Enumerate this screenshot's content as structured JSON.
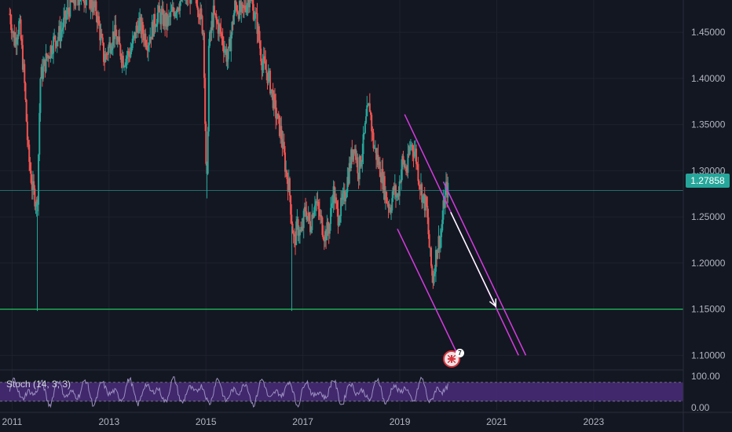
{
  "chart_data": {
    "type": "candlestick",
    "symbol_current_price": "1.27858",
    "price_axis": {
      "ticks": [
        "1.45000",
        "1.40000",
        "1.35000",
        "1.30000",
        "1.25000",
        "1.20000",
        "1.15000",
        "1.10000"
      ],
      "range": [
        1.085,
        1.485
      ]
    },
    "time_axis": {
      "ticks": [
        "2011",
        "2013",
        "2015",
        "2017",
        "2019",
        "2021",
        "2023"
      ],
      "range": [
        2010.75,
        2024.85
      ]
    },
    "price_path": [
      [
        2010.95,
        1.47
      ],
      [
        2011.05,
        1.44
      ],
      [
        2011.15,
        1.46
      ],
      [
        2011.25,
        1.4
      ],
      [
        2011.33,
        1.32
      ],
      [
        2011.42,
        1.28
      ],
      [
        2011.48,
        1.27
      ],
      [
        2011.52,
        1.26
      ],
      [
        2011.58,
        1.4
      ],
      [
        2011.7,
        1.42
      ],
      [
        2011.85,
        1.44
      ],
      [
        2012.0,
        1.45
      ],
      [
        2012.2,
        1.48
      ],
      [
        2012.4,
        1.49
      ],
      [
        2012.55,
        1.49
      ],
      [
        2012.75,
        1.47
      ],
      [
        2012.9,
        1.42
      ],
      [
        2013.1,
        1.45
      ],
      [
        2013.3,
        1.42
      ],
      [
        2013.45,
        1.43
      ],
      [
        2013.6,
        1.46
      ],
      [
        2013.8,
        1.44
      ],
      [
        2014.0,
        1.47
      ],
      [
        2014.2,
        1.46
      ],
      [
        2014.4,
        1.48
      ],
      [
        2014.6,
        1.49
      ],
      [
        2014.8,
        1.49
      ],
      [
        2014.95,
        1.45
      ],
      [
        2015.0,
        1.3
      ],
      [
        2015.03,
        1.28
      ],
      [
        2015.05,
        1.43
      ],
      [
        2015.15,
        1.47
      ],
      [
        2015.3,
        1.45
      ],
      [
        2015.45,
        1.42
      ],
      [
        2015.6,
        1.48
      ],
      [
        2015.75,
        1.47
      ],
      [
        2015.9,
        1.49
      ],
      [
        2016.05,
        1.46
      ],
      [
        2016.15,
        1.42
      ],
      [
        2016.3,
        1.4
      ],
      [
        2016.45,
        1.36
      ],
      [
        2016.55,
        1.34
      ],
      [
        2016.65,
        1.3
      ],
      [
        2016.72,
        1.28
      ],
      [
        2016.78,
        1.24
      ],
      [
        2016.82,
        1.22
      ],
      [
        2016.88,
        1.24
      ],
      [
        2016.97,
        1.23
      ],
      [
        2017.05,
        1.26
      ],
      [
        2017.15,
        1.24
      ],
      [
        2017.25,
        1.27
      ],
      [
        2017.35,
        1.25
      ],
      [
        2017.45,
        1.23
      ],
      [
        2017.55,
        1.24
      ],
      [
        2017.62,
        1.28
      ],
      [
        2017.72,
        1.25
      ],
      [
        2017.85,
        1.27
      ],
      [
        2017.95,
        1.3
      ],
      [
        2018.05,
        1.33
      ],
      [
        2018.15,
        1.3
      ],
      [
        2018.25,
        1.33
      ],
      [
        2018.32,
        1.36
      ],
      [
        2018.38,
        1.37
      ],
      [
        2018.45,
        1.33
      ],
      [
        2018.55,
        1.31
      ],
      [
        2018.65,
        1.29
      ],
      [
        2018.72,
        1.27
      ],
      [
        2018.8,
        1.26
      ],
      [
        2018.88,
        1.28
      ],
      [
        2018.95,
        1.27
      ],
      [
        2019.05,
        1.31
      ],
      [
        2019.15,
        1.3
      ],
      [
        2019.22,
        1.33
      ],
      [
        2019.32,
        1.32
      ],
      [
        2019.4,
        1.29
      ],
      [
        2019.48,
        1.27
      ],
      [
        2019.55,
        1.26
      ],
      [
        2019.62,
        1.21
      ],
      [
        2019.68,
        1.18
      ],
      [
        2019.72,
        1.2
      ],
      [
        2019.78,
        1.22
      ],
      [
        2019.85,
        1.23
      ],
      [
        2019.9,
        1.26
      ],
      [
        2019.95,
        1.28
      ],
      [
        2020.0,
        1.27858
      ]
    ],
    "horizontal_support": 1.15,
    "channel_upper": [
      [
        2019.1,
        1.361
      ],
      [
        2021.45,
        1.1
      ]
    ],
    "channel_upper_inner": [
      [
        2019.1,
        1.361
      ],
      [
        2019.95,
        1.283
      ]
    ],
    "channel_lower": [
      [
        2018.95,
        1.237
      ],
      [
        2020.2,
        1.1
      ]
    ],
    "projection_arrow": [
      [
        2020.05,
        1.255
      ],
      [
        2020.98,
        1.153
      ]
    ],
    "stochastic": {
      "label": "Stoch (14, 3, 3)",
      "ticks": [
        "100.00",
        "0.00"
      ],
      "band_upper": 80,
      "band_lower": 20,
      "range": [
        -8,
        112
      ]
    },
    "colors": {
      "up": "#26a69a",
      "down": "#ef5350",
      "support_line": "#22c55e",
      "channel": "#d63be0",
      "arrow": "#ffffff",
      "stoch_band": "#4a2c7a",
      "background": "#131722",
      "last_price": "#26a69a"
    }
  },
  "badge": {
    "count": "7"
  }
}
